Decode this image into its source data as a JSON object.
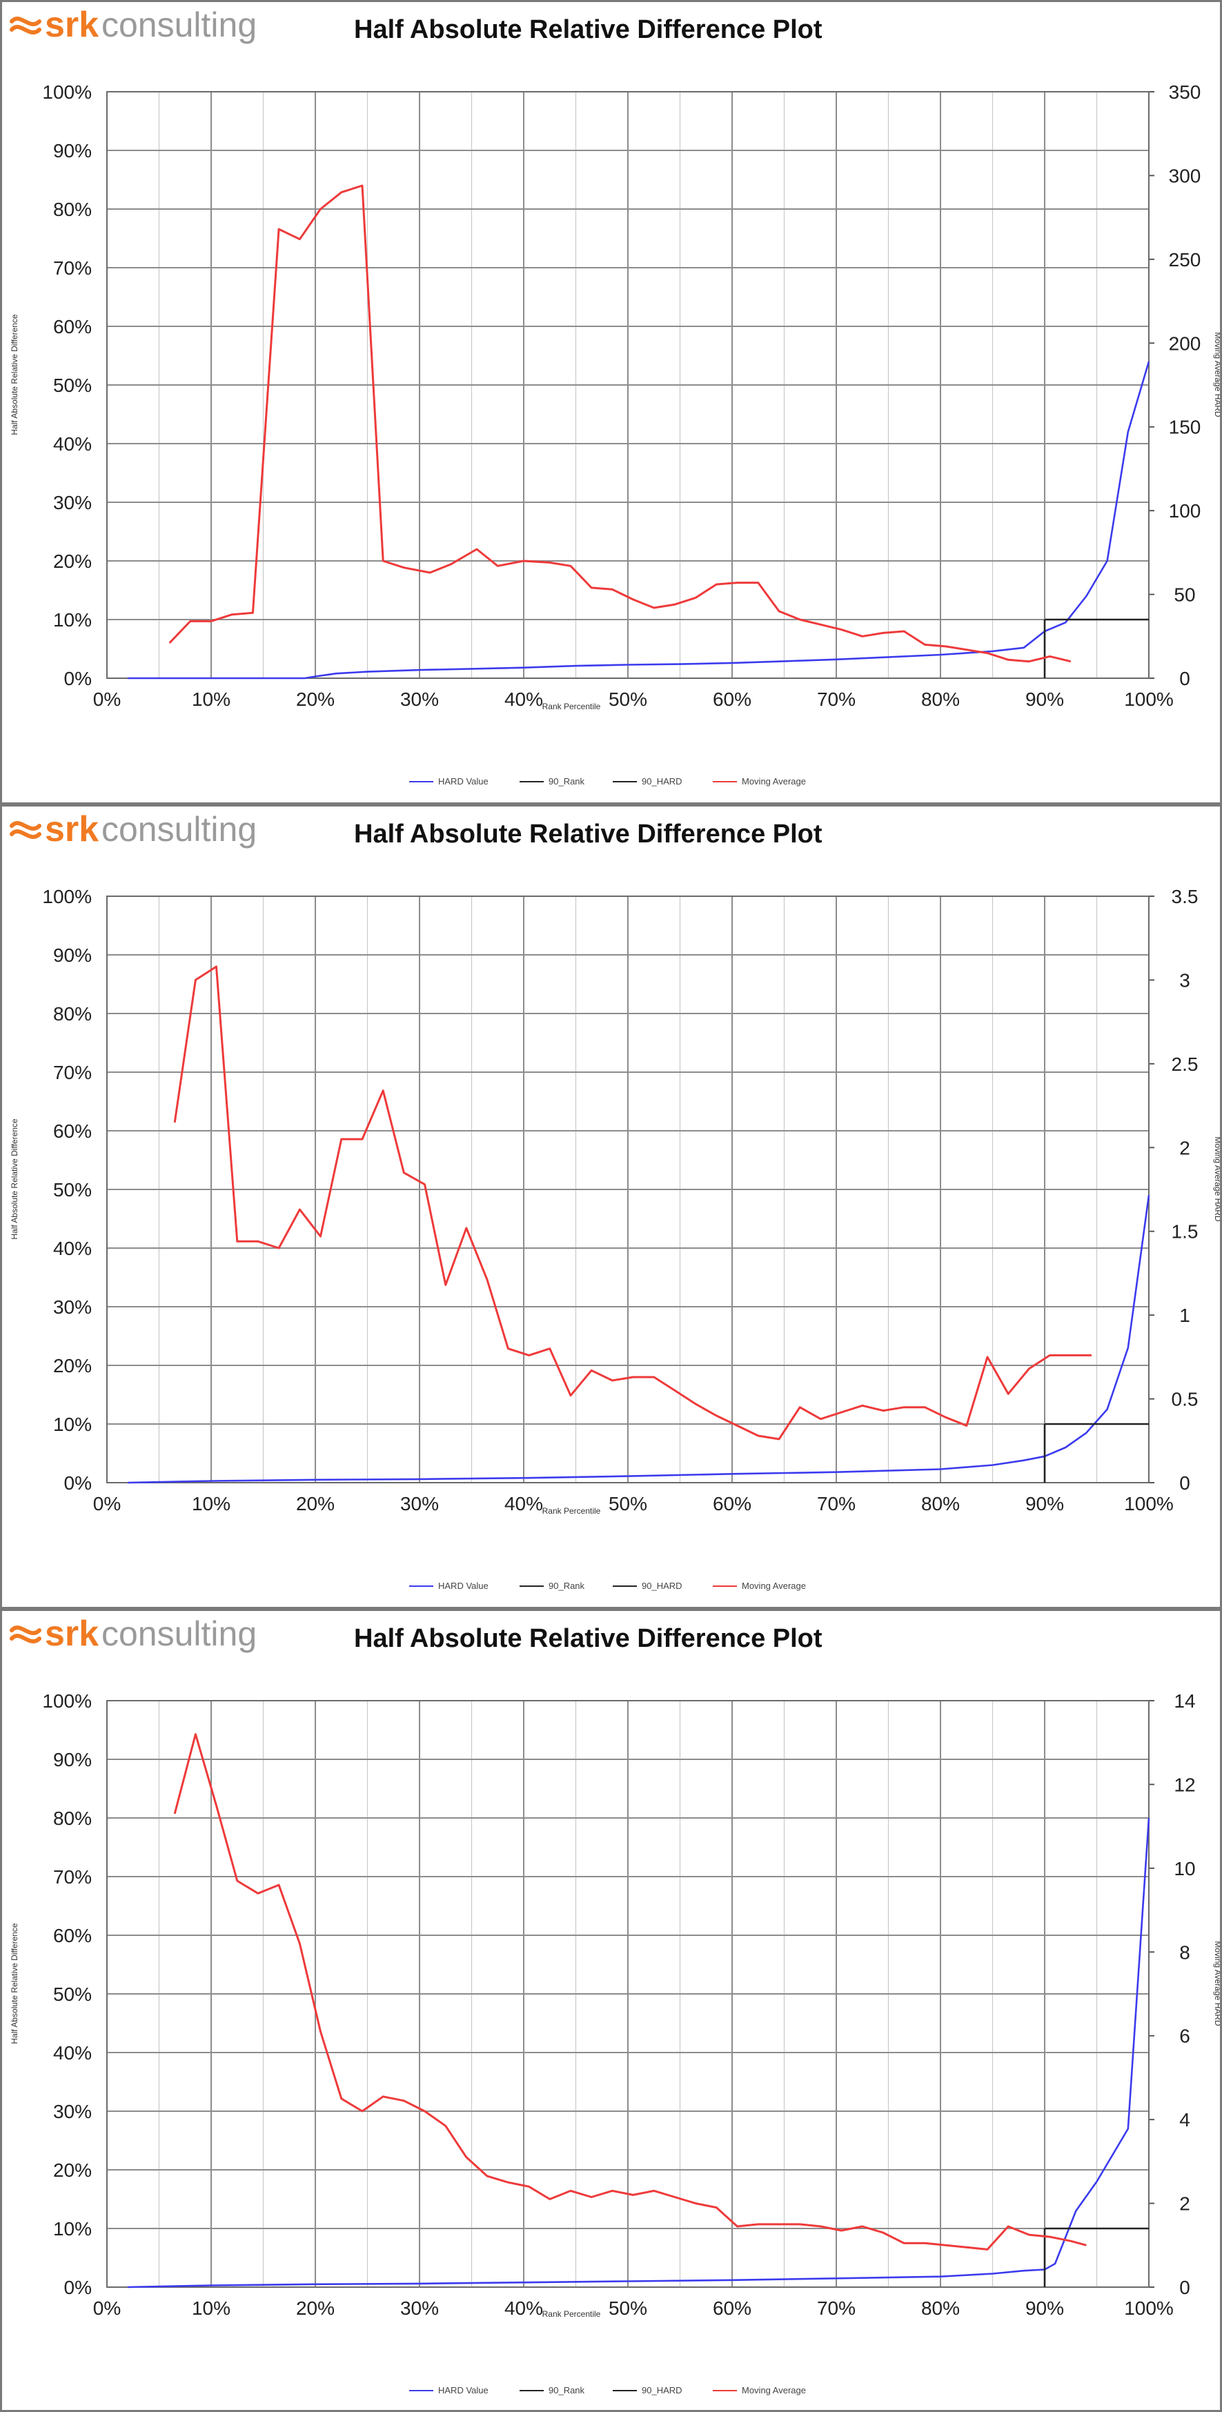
{
  "logo": {
    "brand": "srk",
    "word": "consulting"
  },
  "colors": {
    "hard": "#3b3bee",
    "moving": "#ee3a3a",
    "threshold": "#222222",
    "grid": "#8c8c8c",
    "minor_grid": "#c8c8c8",
    "logo": "#f07a22"
  },
  "chart_data": [
    {
      "type": "line",
      "title": "Half Absolute Relative Difference Plot",
      "xlabel": "Rank Percentile",
      "ylabel": "Half Absolute Relative Difference",
      "y2label": "Moving Average HARD",
      "xlim": [
        0,
        100
      ],
      "ylim": [
        0,
        100
      ],
      "y2lim": [
        0,
        350
      ],
      "x_ticks": [
        "0%",
        "10%",
        "20%",
        "30%",
        "40%",
        "50%",
        "60%",
        "70%",
        "80%",
        "90%",
        "100%"
      ],
      "y_ticks": [
        "0%",
        "10%",
        "20%",
        "30%",
        "40%",
        "50%",
        "60%",
        "70%",
        "80%",
        "90%",
        "100%"
      ],
      "y2_ticks": [
        "0",
        "50",
        "100",
        "150",
        "200",
        "250",
        "300",
        "350"
      ],
      "legend": [
        "HARD Value",
        "90_Rank",
        "90_HARD",
        "Moving Average"
      ],
      "series": [
        {
          "name": "HARD Value",
          "axis": "left",
          "x": [
            2,
            10,
            19,
            20,
            22,
            25,
            30,
            35,
            40,
            45,
            50,
            55,
            60,
            65,
            70,
            75,
            80,
            85,
            88,
            90,
            92,
            94,
            96,
            98,
            100
          ],
          "y": [
            0,
            0,
            0,
            0.3,
            0.8,
            1.1,
            1.4,
            1.6,
            1.8,
            2.1,
            2.3,
            2.4,
            2.6,
            2.9,
            3.2,
            3.6,
            4.0,
            4.6,
            5.2,
            8.0,
            9.5,
            14.0,
            20.0,
            42.0,
            54.0
          ]
        },
        {
          "name": "90_Rank",
          "axis": "left",
          "x": [
            90,
            90
          ],
          "y": [
            0,
            10
          ]
        },
        {
          "name": "90_HARD",
          "axis": "left",
          "x": [
            90,
            100
          ],
          "y": [
            10,
            10
          ]
        },
        {
          "name": "Moving Average",
          "axis": "right",
          "x": [
            6,
            8,
            10,
            12,
            14,
            16.5,
            18.5,
            20.5,
            22.5,
            24.5,
            26.5,
            28.5,
            31,
            33,
            35.5,
            37.5,
            40,
            42.5,
            44.5,
            46.5,
            48.5,
            50.5,
            52.5,
            54.5,
            56.5,
            58.5,
            60.5,
            62.5,
            64.5,
            66.5,
            68.5,
            70.5,
            72.5,
            74.5,
            76.5,
            78.5,
            80.5,
            82.5,
            84.5,
            86.5,
            88.5,
            90.5,
            92.5
          ],
          "y": [
            21,
            34,
            34,
            38,
            39,
            268,
            262,
            280,
            290,
            294,
            70,
            66,
            63,
            68,
            77,
            67,
            70,
            69,
            67,
            54,
            53,
            47,
            42,
            44,
            48,
            56,
            57,
            57,
            40,
            35,
            32,
            29,
            25,
            27,
            28,
            20,
            19,
            17,
            15,
            11,
            10,
            13,
            10
          ]
        }
      ]
    },
    {
      "type": "line",
      "title": "Half Absolute Relative Difference Plot",
      "xlabel": "Rank Percentile",
      "ylabel": "Half Absolute Relative Difference",
      "y2label": "Moving Average HARD",
      "xlim": [
        0,
        100
      ],
      "ylim": [
        0,
        100
      ],
      "y2lim": [
        0,
        3.5
      ],
      "x_ticks": [
        "0%",
        "10%",
        "20%",
        "30%",
        "40%",
        "50%",
        "60%",
        "70%",
        "80%",
        "90%",
        "100%"
      ],
      "y_ticks": [
        "0%",
        "10%",
        "20%",
        "30%",
        "40%",
        "50%",
        "60%",
        "70%",
        "80%",
        "90%",
        "100%"
      ],
      "y2_ticks": [
        "0",
        "0.5",
        "1",
        "1.5",
        "2",
        "2.5",
        "3",
        "3.5"
      ],
      "legend": [
        "HARD Value",
        "90_Rank",
        "90_HARD",
        "Moving Average"
      ],
      "series": [
        {
          "name": "HARD Value",
          "axis": "left",
          "x": [
            2,
            10,
            20,
            30,
            40,
            50,
            60,
            70,
            80,
            85,
            88,
            90,
            92,
            94,
            96,
            98,
            100
          ],
          "y": [
            0,
            0.3,
            0.5,
            0.6,
            0.8,
            1.1,
            1.5,
            1.8,
            2.3,
            3.0,
            3.8,
            4.5,
            6.0,
            8.5,
            12.5,
            23.0,
            49.0
          ]
        },
        {
          "name": "90_Rank",
          "axis": "left",
          "x": [
            90,
            90
          ],
          "y": [
            0,
            10
          ]
        },
        {
          "name": "90_HARD",
          "axis": "left",
          "x": [
            90,
            100
          ],
          "y": [
            10,
            10
          ]
        },
        {
          "name": "Moving Average",
          "axis": "right",
          "x": [
            6.5,
            8.5,
            10.5,
            12.5,
            14.5,
            16.5,
            18.5,
            20.5,
            22.5,
            24.5,
            26.5,
            28.5,
            30.5,
            32.5,
            34.5,
            36.5,
            38.5,
            40.5,
            42.5,
            44.5,
            46.5,
            48.5,
            50.5,
            52.5,
            54.5,
            56.5,
            58.5,
            60.5,
            62.5,
            64.5,
            66.5,
            68.5,
            70.5,
            72.5,
            74.5,
            76.5,
            78.5,
            80.5,
            82.5,
            84.5,
            86.5,
            88.5,
            90.5,
            92.5,
            94.5
          ],
          "y": [
            2.15,
            3.0,
            3.08,
            1.44,
            1.44,
            1.4,
            1.63,
            1.47,
            2.05,
            2.05,
            2.34,
            1.85,
            1.78,
            1.18,
            1.52,
            1.21,
            0.8,
            0.76,
            0.8,
            0.52,
            0.67,
            0.61,
            0.63,
            0.63,
            0.55,
            0.47,
            0.4,
            0.34,
            0.28,
            0.26,
            0.45,
            0.38,
            0.42,
            0.46,
            0.43,
            0.45,
            0.45,
            0.39,
            0.34,
            0.75,
            0.53,
            0.68,
            0.76,
            0.76,
            0.76
          ]
        }
      ]
    },
    {
      "type": "line",
      "title": "Half Absolute Relative Difference Plot",
      "xlabel": "Rank Percentile",
      "ylabel": "Half Absolute Relative Difference",
      "y2label": "Moving Average HARD",
      "xlim": [
        0,
        100
      ],
      "ylim": [
        0,
        100
      ],
      "y2lim": [
        0,
        14
      ],
      "x_ticks": [
        "0%",
        "10%",
        "20%",
        "30%",
        "40%",
        "50%",
        "60%",
        "70%",
        "80%",
        "90%",
        "100%"
      ],
      "y_ticks": [
        "0%",
        "10%",
        "20%",
        "30%",
        "40%",
        "50%",
        "60%",
        "70%",
        "80%",
        "90%",
        "100%"
      ],
      "y2_ticks": [
        "0",
        "2",
        "4",
        "6",
        "8",
        "10",
        "12",
        "14"
      ],
      "legend": [
        "HARD Value",
        "90_Rank",
        "90_HARD",
        "Moving Average"
      ],
      "series": [
        {
          "name": "HARD Value",
          "axis": "left",
          "x": [
            2,
            10,
            20,
            30,
            40,
            50,
            60,
            70,
            80,
            85,
            88,
            90,
            91,
            93,
            95,
            98,
            100
          ],
          "y": [
            0,
            0.3,
            0.5,
            0.6,
            0.8,
            1.0,
            1.2,
            1.5,
            1.8,
            2.3,
            2.8,
            3.0,
            4.0,
            13.0,
            18.0,
            27.0,
            80.0
          ]
        },
        {
          "name": "90_Rank",
          "axis": "left",
          "x": [
            90,
            90
          ],
          "y": [
            0,
            10
          ]
        },
        {
          "name": "90_HARD",
          "axis": "left",
          "x": [
            90,
            100
          ],
          "y": [
            10,
            10
          ]
        },
        {
          "name": "Moving Average",
          "axis": "right",
          "x": [
            6.5,
            8.5,
            10.5,
            12.5,
            14.5,
            16.5,
            18.5,
            20.5,
            22.5,
            24.5,
            26.5,
            28.5,
            30.5,
            32.5,
            34.5,
            36.5,
            38.5,
            40.5,
            42.5,
            44.5,
            46.5,
            48.5,
            50.5,
            52.5,
            54.5,
            56.5,
            58.5,
            60.5,
            62.5,
            64.5,
            66.5,
            68.5,
            70.5,
            72.5,
            74.5,
            76.5,
            78.5,
            80.5,
            82.5,
            84.5,
            86.5,
            88.5,
            90.5,
            92.5,
            94
          ],
          "y": [
            11.3,
            13.2,
            11.5,
            9.7,
            9.4,
            9.6,
            8.2,
            6.1,
            4.5,
            4.2,
            4.55,
            4.45,
            4.2,
            3.85,
            3.1,
            2.65,
            2.5,
            2.4,
            2.1,
            2.3,
            2.15,
            2.3,
            2.2,
            2.3,
            2.15,
            2.0,
            1.9,
            1.45,
            1.5,
            1.5,
            1.5,
            1.45,
            1.35,
            1.45,
            1.3,
            1.05,
            1.05,
            1.0,
            0.95,
            0.9,
            1.45,
            1.25,
            1.2,
            1.1,
            1.0
          ]
        }
      ]
    }
  ]
}
